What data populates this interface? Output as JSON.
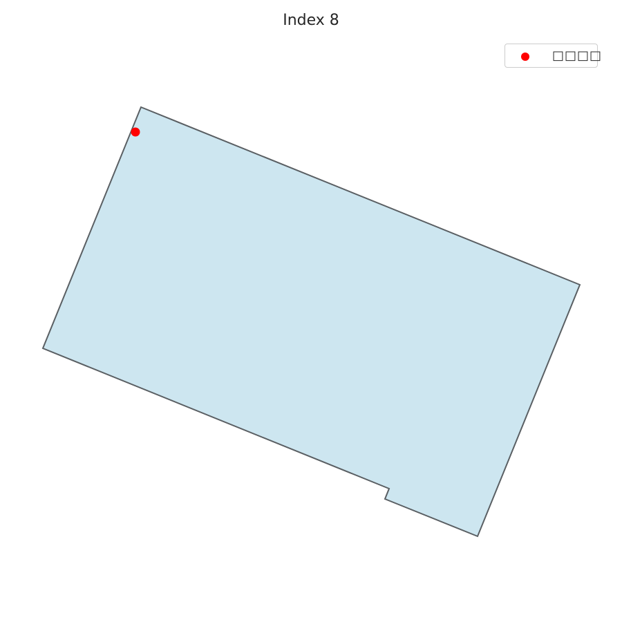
{
  "title": "Index 8",
  "colors": {
    "polygon_fill": "#cde6f0",
    "polygon_stroke": "#5a5f63",
    "point": "#ff0000"
  },
  "legend": {
    "entries": [
      {
        "label": "□□□□",
        "marker": "circle",
        "color": "#ff0000"
      }
    ],
    "placement": "top-right"
  }
}
